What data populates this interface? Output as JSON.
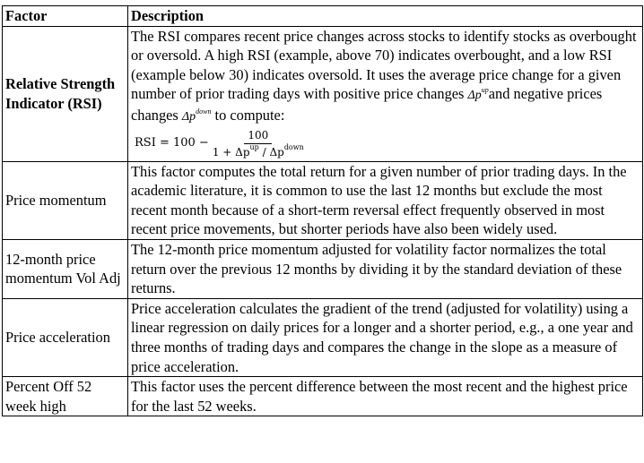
{
  "header": {
    "factor": "Factor",
    "description": "Description"
  },
  "rows": [
    {
      "factor": "Relative Strength Indicator (RSI)",
      "desc_before": "The RSI compares recent price changes across stocks to identify stocks as overbought or oversold. A high RSI (example, above 70) indicates overbought, and a low RSI (example below 30) indicates oversold. It uses the average price change for a given number of prior trading days with positive price changes ",
      "sym_up_base": "Δp",
      "sym_up_sup": "up",
      "desc_middle": "and negative prices changes ",
      "sym_down_base": "Δp",
      "sym_down_sup": "down",
      "desc_after": " to compute:",
      "formula_lhs": "RSI = 100 −",
      "formula_num": "100",
      "formula_den_prefix": "1 + Δp",
      "formula_den_sup1": "up",
      "formula_den_mid": " / Δp",
      "formula_den_sup2": "down"
    },
    {
      "factor": "Price momentum",
      "description": "This factor computes the total return for a given number of prior trading days. In the academic literature, it is common to use the last 12 months but exclude the most recent month because of a short-term reversal effect frequently observed in most recent price movements, but shorter periods have also been widely used."
    },
    {
      "factor": "12-month price momentum Vol Adj",
      "description": "The 12-month price momentum adjusted for volatility factor normalizes the total return over the previous 12 months by dividing it by the standard deviation of these returns."
    },
    {
      "factor": "Price acceleration",
      "description": "Price acceleration calculates the gradient of the trend (adjusted for volatility) using a linear regression on daily prices for a longer and a shorter period, e.g., a one year and three months of trading days and compares the change in the slope as a measure of price acceleration."
    },
    {
      "factor": "Percent Off 52 week high",
      "description": "This factor uses the percent difference between the most recent and the highest price for the last 52 weeks."
    }
  ]
}
